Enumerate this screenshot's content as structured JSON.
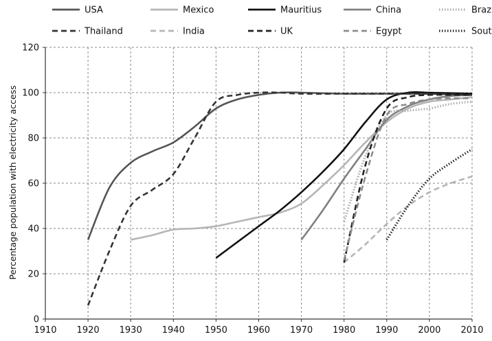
{
  "chart_data": {
    "type": "line",
    "title": "",
    "xlabel": "",
    "ylabel": "Percentage population with electricity access",
    "xlim": [
      1910,
      2010
    ],
    "ylim": [
      0,
      120
    ],
    "x_ticks": [
      "1910",
      "1920",
      "1930",
      "1940",
      "1950",
      "1960",
      "1970",
      "1980",
      "1990",
      "2000",
      "2010"
    ],
    "y_ticks": [
      "0",
      "20",
      "40",
      "60",
      "80",
      "100",
      "120"
    ],
    "grid": true,
    "legend_position": "top",
    "series": [
      {
        "name": "USA",
        "color": "#555555",
        "style": "solid",
        "points": [
          [
            1920,
            35
          ],
          [
            1925,
            58
          ],
          [
            1930,
            69
          ],
          [
            1935,
            74
          ],
          [
            1940,
            78
          ],
          [
            1945,
            85
          ],
          [
            1950,
            93
          ],
          [
            1955,
            97
          ],
          [
            1960,
            99
          ],
          [
            1965,
            100
          ],
          [
            1970,
            100
          ],
          [
            1980,
            99.5
          ],
          [
            1990,
            99.5
          ],
          [
            2000,
            99.5
          ],
          [
            2010,
            99
          ]
        ]
      },
      {
        "name": "Mexico",
        "color": "#b5b5b5",
        "style": "solid",
        "points": [
          [
            1930,
            35
          ],
          [
            1935,
            37
          ],
          [
            1940,
            39.5
          ],
          [
            1945,
            40
          ],
          [
            1950,
            41
          ],
          [
            1955,
            43
          ],
          [
            1960,
            45
          ],
          [
            1965,
            47
          ],
          [
            1970,
            51
          ],
          [
            1975,
            59
          ],
          [
            1980,
            68
          ],
          [
            1985,
            78
          ],
          [
            1990,
            87
          ],
          [
            1995,
            93
          ],
          [
            2000,
            96
          ],
          [
            2005,
            97
          ],
          [
            2010,
            98
          ]
        ]
      },
      {
        "name": "Mauritius",
        "color": "#111111",
        "style": "solid",
        "points": [
          [
            1950,
            27
          ],
          [
            1955,
            34
          ],
          [
            1960,
            41
          ],
          [
            1965,
            48
          ],
          [
            1970,
            56
          ],
          [
            1975,
            65
          ],
          [
            1980,
            75
          ],
          [
            1985,
            87
          ],
          [
            1990,
            97
          ],
          [
            1995,
            100
          ],
          [
            2000,
            100
          ],
          [
            2010,
            99.5
          ]
        ]
      },
      {
        "name": "China",
        "color": "#808080",
        "style": "solid",
        "points": [
          [
            1970,
            35
          ],
          [
            1975,
            48
          ],
          [
            1980,
            62
          ],
          [
            1985,
            75
          ],
          [
            1990,
            88
          ],
          [
            1995,
            94
          ],
          [
            2000,
            97
          ],
          [
            2005,
            98.5
          ],
          [
            2010,
            99
          ]
        ]
      },
      {
        "name": "Brazil",
        "color": "#a8a8a8",
        "style": "dotted",
        "points": [
          [
            1980,
            43
          ],
          [
            1985,
            72
          ],
          [
            1990,
            90
          ],
          [
            1995,
            92
          ],
          [
            2000,
            93
          ],
          [
            2005,
            95
          ],
          [
            2010,
            96
          ]
        ]
      },
      {
        "name": "Thailand",
        "color": "#333333",
        "style": "dashed",
        "points": [
          [
            1920,
            6
          ],
          [
            1925,
            30
          ],
          [
            1930,
            50
          ],
          [
            1935,
            57
          ],
          [
            1940,
            64
          ],
          [
            1945,
            80
          ],
          [
            1950,
            96
          ],
          [
            1955,
            99
          ],
          [
            1960,
            100
          ],
          [
            1965,
            100
          ],
          [
            1970,
            99.5
          ],
          [
            1980,
            99.5
          ],
          [
            1990,
            99.5
          ],
          [
            2000,
            99.5
          ],
          [
            2010,
            99
          ]
        ]
      },
      {
        "name": "India",
        "color": "#b5b5b5",
        "style": "dashed",
        "points": [
          [
            1980,
            25
          ],
          [
            1985,
            33
          ],
          [
            1990,
            42
          ],
          [
            1995,
            50
          ],
          [
            2000,
            56
          ],
          [
            2005,
            60
          ],
          [
            2010,
            63
          ]
        ]
      },
      {
        "name": "UK",
        "color": "#222222",
        "style": "dashed",
        "points": [
          [
            1980,
            25
          ],
          [
            1985,
            68
          ],
          [
            1990,
            93
          ],
          [
            1995,
            98
          ],
          [
            2000,
            99
          ],
          [
            2005,
            99
          ],
          [
            2010,
            99
          ]
        ]
      },
      {
        "name": "Egypt",
        "color": "#8c8c8c",
        "style": "dashed",
        "points": [
          [
            1980,
            26
          ],
          [
            1985,
            63
          ],
          [
            1990,
            90
          ],
          [
            1995,
            95
          ],
          [
            2000,
            97
          ],
          [
            2005,
            97.5
          ],
          [
            2010,
            97.5
          ]
        ]
      },
      {
        "name": "South Africa",
        "color": "#222222",
        "style": "dotted",
        "points": [
          [
            1990,
            35
          ],
          [
            1995,
            50
          ],
          [
            2000,
            62
          ],
          [
            2005,
            69
          ],
          [
            2010,
            75
          ]
        ]
      }
    ]
  }
}
